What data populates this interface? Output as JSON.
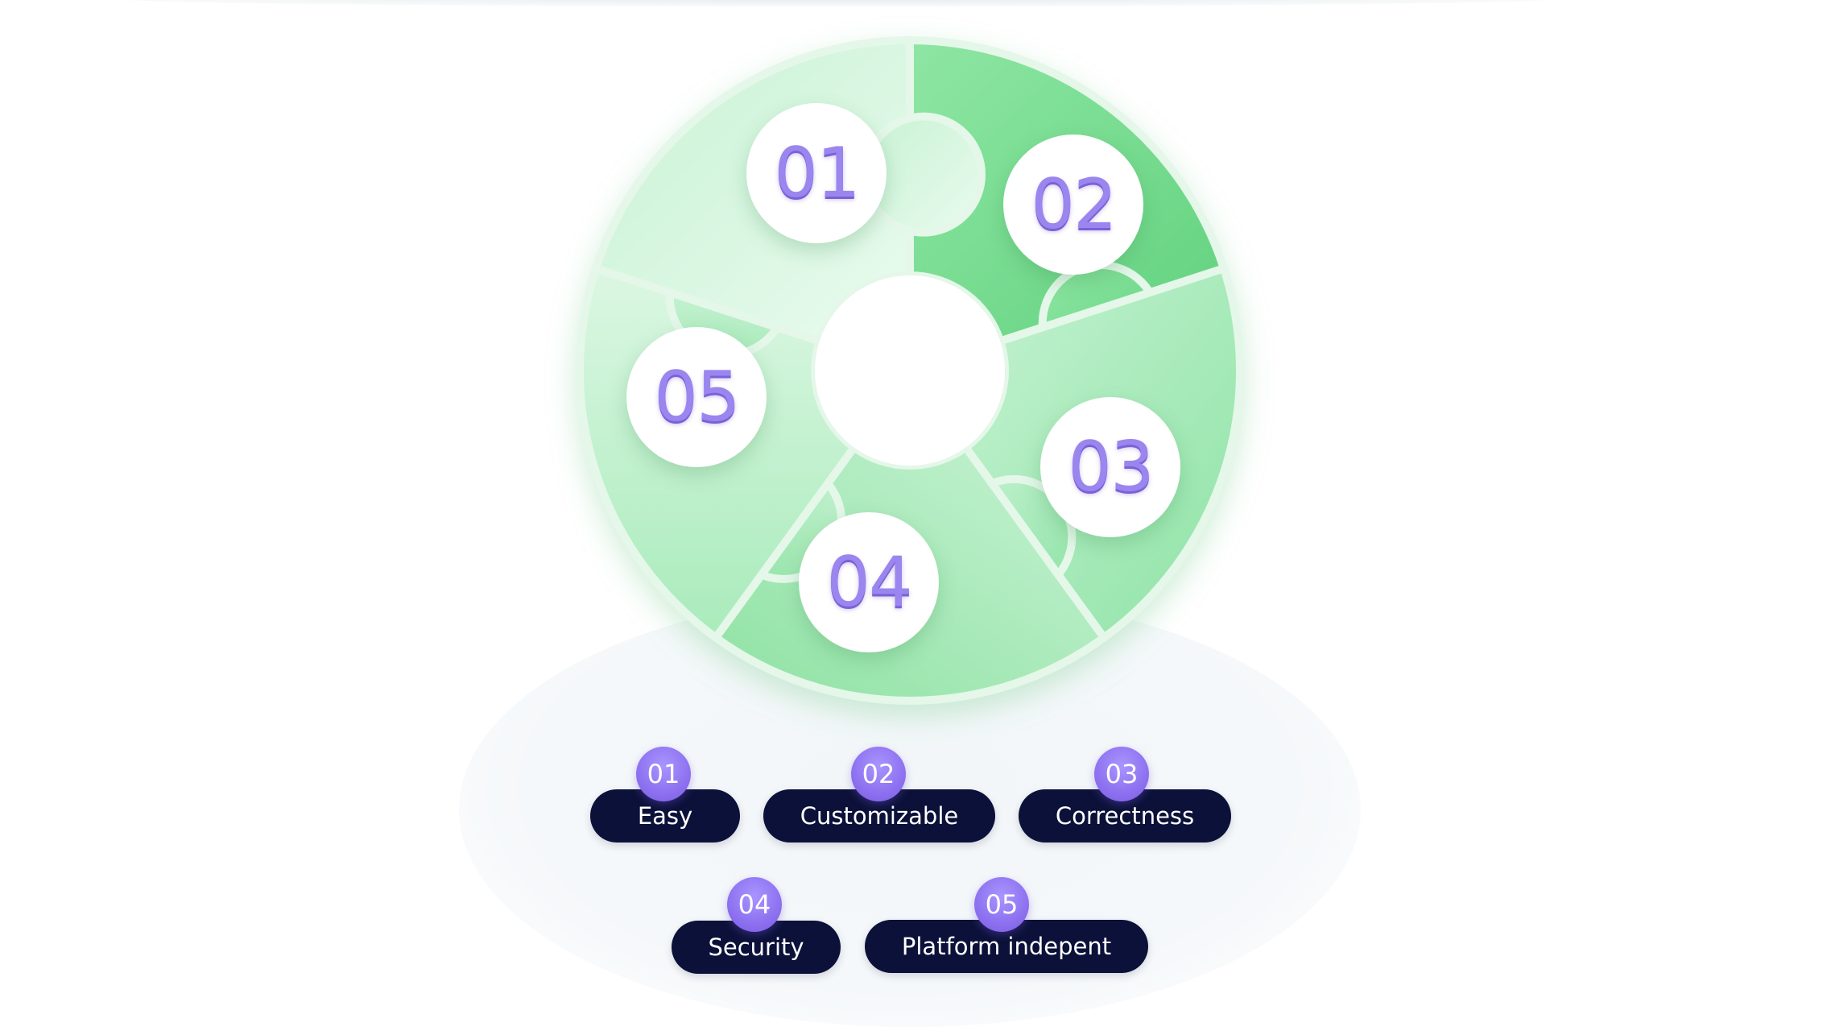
{
  "diagram": {
    "steps": [
      {
        "number": "01",
        "label": "Easy"
      },
      {
        "number": "02",
        "label": "Customizable"
      },
      {
        "number": "03",
        "label": "Correctness"
      },
      {
        "number": "04",
        "label": "Security"
      },
      {
        "number": "05",
        "label": "Platform indepent"
      }
    ]
  },
  "colors": {
    "segment_1": "#6fdb8a",
    "segment_2": "#a6eab9",
    "segment_3": "#97e6aa",
    "segment_4": "#c3f0cf",
    "segment_5": "#d8f6df",
    "number_text": "#9a86ee",
    "pill_bg": "#0c1139",
    "badge": "#8d71f0"
  }
}
